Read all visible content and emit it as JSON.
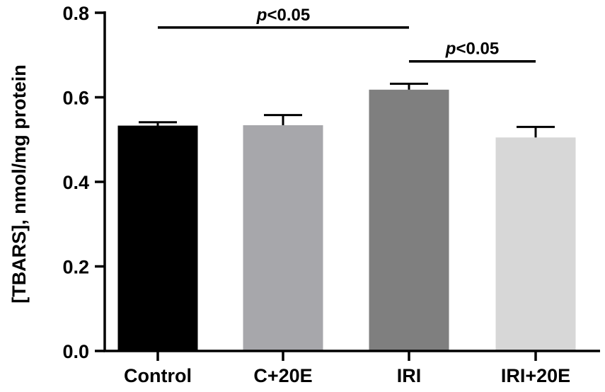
{
  "chart_data": {
    "type": "bar",
    "title": "",
    "xlabel": "",
    "ylabel": "[TBARS], nmol/mg protein",
    "ylim": [
      0,
      0.8
    ],
    "yticks": [
      "0.0",
      "0.2",
      "0.4",
      "0.6",
      "0.8"
    ],
    "ytick_values": [
      0,
      0.2,
      0.4,
      0.6,
      0.8
    ],
    "grid": false,
    "categories": [
      "Control",
      "C+20E",
      "IRI",
      "IRI+20E"
    ],
    "values": [
      0.533,
      0.534,
      0.618,
      0.505
    ],
    "errors": [
      0.008,
      0.024,
      0.014,
      0.025
    ],
    "colors": [
      "#000000",
      "#a7a7ab",
      "#7f7f7f",
      "#d7d7d7"
    ],
    "significance": [
      {
        "from": 0,
        "to": 2,
        "y": 0.765,
        "italic": "p",
        "rest": "<0.05"
      },
      {
        "from": 2,
        "to": 3,
        "y": 0.685,
        "italic": "p",
        "rest": "<0.05"
      }
    ]
  }
}
